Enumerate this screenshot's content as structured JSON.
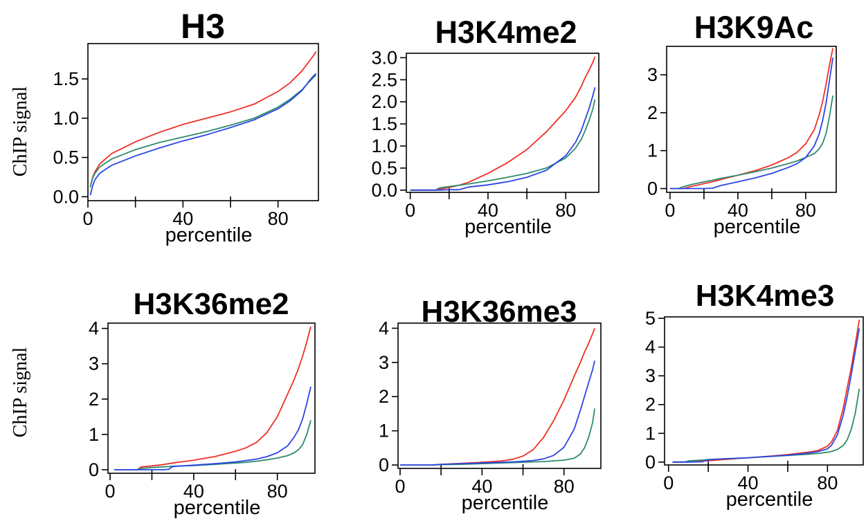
{
  "ylabel_left": "ChIP signal",
  "series_colors": [
    "#ee2f26",
    "#2d8a6e",
    "#2a45e4"
  ],
  "chart_data": [
    {
      "type": "line",
      "title": "H3",
      "xlabel": "percentile",
      "ylabel": "ChIP signal",
      "xlim": [
        0,
        97
      ],
      "ylim": [
        -0.05,
        1.95
      ],
      "xticks": [
        0,
        40,
        80
      ],
      "xticks_unlabeled": [
        20,
        60
      ],
      "yticks": [
        0.0,
        0.5,
        1.0,
        1.5
      ],
      "ytick_labels": [
        "0.0",
        "0.5",
        "1.0",
        "1.5"
      ],
      "x": [
        1,
        2,
        3,
        5,
        10,
        20,
        30,
        40,
        50,
        60,
        70,
        80,
        85,
        90,
        93,
        95,
        96
      ],
      "series": [
        {
          "color": "#ee2f26",
          "values": [
            0.12,
            0.25,
            0.32,
            0.42,
            0.55,
            0.7,
            0.82,
            0.92,
            1.0,
            1.08,
            1.18,
            1.34,
            1.45,
            1.6,
            1.72,
            1.8,
            1.85
          ]
        },
        {
          "color": "#2d8a6e",
          "values": [
            0.12,
            0.24,
            0.3,
            0.38,
            0.48,
            0.6,
            0.69,
            0.76,
            0.83,
            0.91,
            1.0,
            1.14,
            1.24,
            1.36,
            1.46,
            1.52,
            1.55
          ]
        },
        {
          "color": "#2a45e4",
          "values": [
            0.02,
            0.14,
            0.22,
            0.3,
            0.4,
            0.52,
            0.62,
            0.71,
            0.79,
            0.88,
            0.98,
            1.12,
            1.22,
            1.35,
            1.47,
            1.54,
            1.57
          ]
        }
      ]
    },
    {
      "type": "line",
      "title": "H3K4me2",
      "xlabel": "percentile",
      "ylabel": "",
      "xlim": [
        -2,
        97
      ],
      "ylim": [
        -0.05,
        3.1
      ],
      "xticks": [
        0,
        40,
        80
      ],
      "xticks_unlabeled": [
        20,
        60
      ],
      "yticks": [
        0.0,
        0.5,
        1.0,
        1.5,
        2.0,
        2.5,
        3.0
      ],
      "ytick_labels": [
        "0.0",
        "0.5",
        "1.0",
        "1.5",
        "2.0",
        "2.5",
        "3.0"
      ],
      "x": [
        0,
        10,
        13,
        15,
        20,
        25,
        30,
        40,
        50,
        60,
        70,
        80,
        85,
        88,
        90,
        92,
        94,
        95
      ],
      "series": [
        {
          "color": "#ee2f26",
          "values": [
            0,
            0,
            0,
            0.02,
            0.06,
            0.11,
            0.18,
            0.38,
            0.62,
            0.92,
            1.32,
            1.8,
            2.1,
            2.35,
            2.55,
            2.72,
            2.9,
            3.02
          ]
        },
        {
          "color": "#2d8a6e",
          "values": [
            0,
            0,
            0,
            0.05,
            0.08,
            0.11,
            0.14,
            0.21,
            0.29,
            0.38,
            0.5,
            0.73,
            0.95,
            1.15,
            1.35,
            1.58,
            1.85,
            2.05
          ]
        },
        {
          "color": "#2a45e4",
          "values": [
            0,
            0,
            0,
            0,
            0.01,
            0.01,
            0.07,
            0.12,
            0.19,
            0.29,
            0.45,
            0.78,
            1.08,
            1.35,
            1.6,
            1.85,
            2.15,
            2.33
          ]
        }
      ]
    },
    {
      "type": "line",
      "title": "H3K9Ac",
      "xlabel": "percentile",
      "ylabel": "",
      "xlim": [
        -2,
        98
      ],
      "ylim": [
        -0.1,
        3.75
      ],
      "xticks": [
        0,
        40,
        80
      ],
      "xticks_unlabeled": [
        20,
        60
      ],
      "yticks": [
        0,
        1,
        2,
        3
      ],
      "ytick_labels": [
        "0",
        "1",
        "2",
        "3"
      ],
      "x": [
        0,
        5,
        8,
        12,
        20,
        25,
        30,
        40,
        50,
        60,
        70,
        75,
        80,
        85,
        88,
        90,
        92,
        94,
        96
      ],
      "series": [
        {
          "color": "#ee2f26",
          "values": [
            0,
            0,
            0,
            0.05,
            0.13,
            0.18,
            0.24,
            0.35,
            0.47,
            0.62,
            0.82,
            0.96,
            1.18,
            1.55,
            1.95,
            2.3,
            2.75,
            3.25,
            3.7
          ]
        },
        {
          "color": "#2d8a6e",
          "values": [
            0,
            0,
            0.05,
            0.1,
            0.18,
            0.22,
            0.27,
            0.35,
            0.44,
            0.54,
            0.66,
            0.73,
            0.82,
            0.92,
            1.05,
            1.2,
            1.45,
            1.9,
            2.45
          ]
        },
        {
          "color": "#2a45e4",
          "values": [
            0,
            0,
            0,
            0,
            0,
            0.01,
            0.08,
            0.18,
            0.28,
            0.4,
            0.56,
            0.66,
            0.82,
            1.12,
            1.45,
            1.8,
            2.25,
            2.85,
            3.45
          ]
        }
      ]
    },
    {
      "type": "line",
      "title": "H3K36me2",
      "xlabel": "percentile",
      "ylabel": "ChIP signal",
      "xlim": [
        -1,
        98
      ],
      "ylim": [
        -0.1,
        4.15
      ],
      "xticks": [
        0,
        40,
        80
      ],
      "xticks_unlabeled": [
        20,
        60
      ],
      "yticks": [
        0,
        1,
        2,
        3,
        4
      ],
      "ytick_labels": [
        "0",
        "1",
        "2",
        "3",
        "4"
      ],
      "x": [
        2,
        10,
        13,
        15,
        20,
        25,
        28,
        30,
        40,
        50,
        60,
        65,
        70,
        75,
        80,
        85,
        88,
        90,
        92,
        94,
        96
      ],
      "series": [
        {
          "color": "#ee2f26",
          "values": [
            0,
            0,
            0,
            0.08,
            0.11,
            0.14,
            0.17,
            0.19,
            0.27,
            0.37,
            0.52,
            0.62,
            0.77,
            1.05,
            1.5,
            2.15,
            2.55,
            2.85,
            3.2,
            3.6,
            4.05
          ]
        },
        {
          "color": "#2d8a6e",
          "values": [
            0,
            0,
            0,
            0.04,
            0.06,
            0.08,
            0.09,
            0.1,
            0.12,
            0.15,
            0.19,
            0.21,
            0.24,
            0.28,
            0.33,
            0.4,
            0.48,
            0.56,
            0.7,
            0.98,
            1.4
          ]
        },
        {
          "color": "#2a45e4",
          "values": [
            0,
            0,
            0,
            0,
            0,
            0,
            0.01,
            0.09,
            0.13,
            0.17,
            0.22,
            0.26,
            0.3,
            0.37,
            0.48,
            0.68,
            0.92,
            1.12,
            1.42,
            1.85,
            2.35
          ]
        }
      ]
    },
    {
      "type": "line",
      "title": "H3K36me3",
      "xlabel": "percentile",
      "ylabel": "",
      "xlim": [
        -1,
        98
      ],
      "ylim": [
        -0.1,
        4.15
      ],
      "xticks": [
        0,
        40,
        80
      ],
      "xticks_unlabeled": [
        20,
        60
      ],
      "yticks": [
        0,
        1,
        2,
        3,
        4
      ],
      "ytick_labels": [
        "0",
        "1",
        "2",
        "3",
        "4"
      ],
      "x": [
        0,
        15,
        20,
        30,
        40,
        50,
        55,
        60,
        65,
        70,
        75,
        80,
        85,
        88,
        90,
        92,
        94,
        95
      ],
      "series": [
        {
          "color": "#ee2f26",
          "values": [
            0,
            0,
            0.02,
            0.05,
            0.08,
            0.12,
            0.17,
            0.26,
            0.45,
            0.8,
            1.3,
            1.9,
            2.6,
            3.0,
            3.3,
            3.55,
            3.85,
            4.0
          ]
        },
        {
          "color": "#2d8a6e",
          "values": [
            0,
            0,
            0.01,
            0.02,
            0.04,
            0.06,
            0.07,
            0.08,
            0.09,
            0.1,
            0.12,
            0.14,
            0.2,
            0.32,
            0.5,
            0.8,
            1.25,
            1.65
          ]
        },
        {
          "color": "#2a45e4",
          "values": [
            0,
            0,
            0.02,
            0.04,
            0.06,
            0.08,
            0.09,
            0.11,
            0.13,
            0.18,
            0.28,
            0.52,
            1.05,
            1.6,
            2.0,
            2.4,
            2.8,
            3.05
          ]
        }
      ]
    },
    {
      "type": "line",
      "title": "H3K4me3",
      "xlabel": "percentile",
      "ylabel": "",
      "xlim": [
        -2,
        98
      ],
      "ylim": [
        -0.1,
        5.05
      ],
      "xticks": [
        0,
        40,
        80
      ],
      "xticks_unlabeled": [
        20,
        60
      ],
      "yticks": [
        0,
        1,
        2,
        3,
        4,
        5
      ],
      "ytick_labels": [
        "0",
        "1",
        "2",
        "3",
        "4",
        "5"
      ],
      "x": [
        2,
        8,
        10,
        17,
        20,
        30,
        40,
        50,
        60,
        70,
        75,
        80,
        82,
        85,
        88,
        90,
        92,
        94,
        96
      ],
      "series": [
        {
          "color": "#ee2f26",
          "values": [
            0,
            0,
            0.02,
            0.04,
            0.05,
            0.1,
            0.15,
            0.2,
            0.26,
            0.34,
            0.4,
            0.55,
            0.7,
            1.1,
            1.9,
            2.6,
            3.3,
            4.1,
            4.95
          ]
        },
        {
          "color": "#2d8a6e",
          "values": [
            0,
            0,
            0.04,
            0.07,
            0.09,
            0.12,
            0.15,
            0.19,
            0.23,
            0.27,
            0.3,
            0.34,
            0.37,
            0.44,
            0.58,
            0.78,
            1.15,
            1.7,
            2.55
          ]
        },
        {
          "color": "#2a45e4",
          "values": [
            0,
            0,
            0,
            0.01,
            0.08,
            0.12,
            0.15,
            0.19,
            0.24,
            0.31,
            0.36,
            0.46,
            0.58,
            0.95,
            1.65,
            2.3,
            3.05,
            3.85,
            4.65
          ]
        }
      ]
    }
  ]
}
